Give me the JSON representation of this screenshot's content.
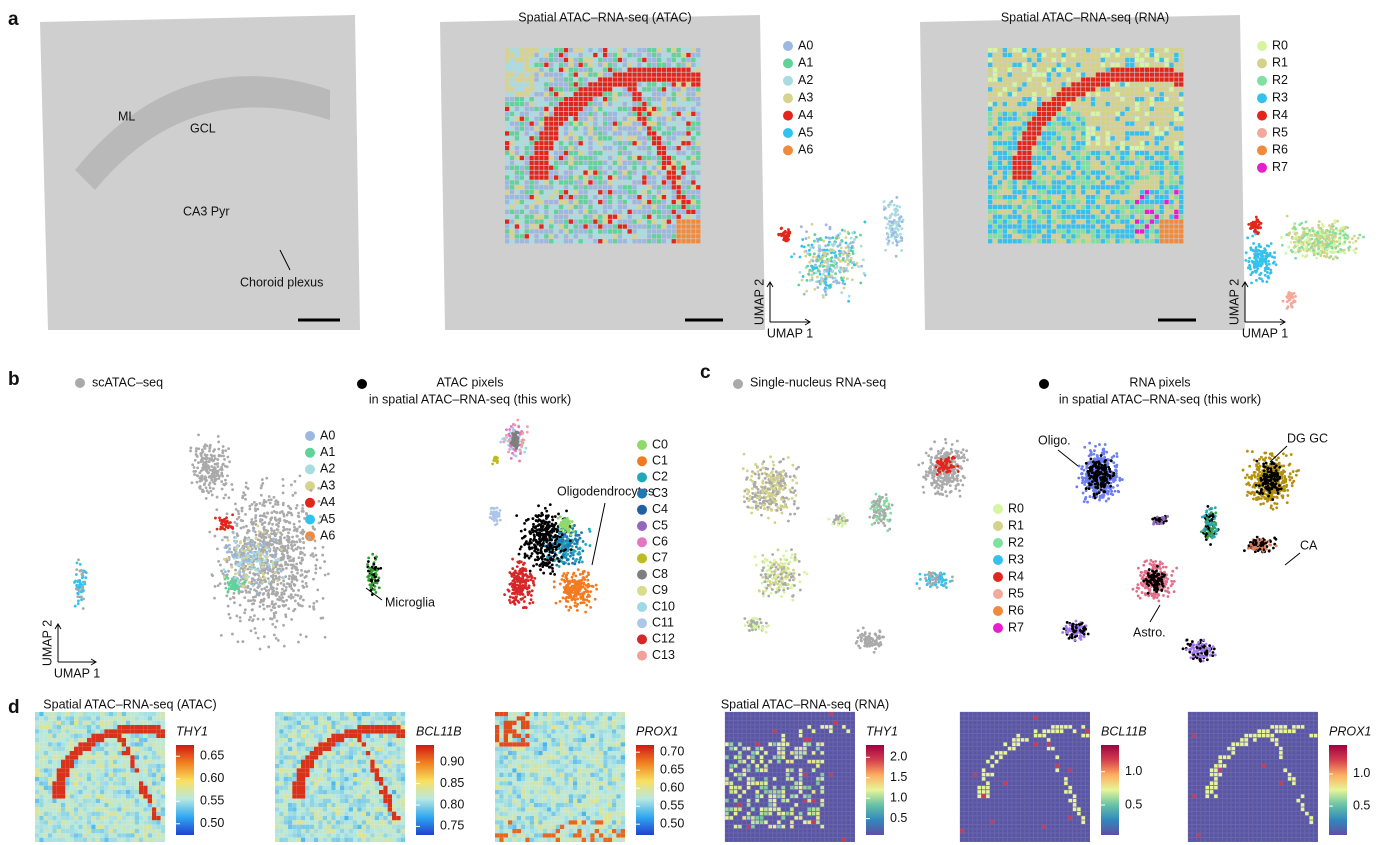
{
  "panel_a": {
    "letter": "a",
    "tissue_labels": [
      "ML",
      "GCL",
      "CA3 Pyr",
      "Choroid plexus"
    ],
    "atac_title": "Spatial ATAC–RNA-seq (ATAC)",
    "rna_title": "Spatial ATAC–RNA-seq (RNA)",
    "atac_clusters": [
      {
        "name": "A0",
        "color": "#9db8e0"
      },
      {
        "name": "A1",
        "color": "#5fd39a"
      },
      {
        "name": "A2",
        "color": "#a8dce0"
      },
      {
        "name": "A3",
        "color": "#d6d38c"
      },
      {
        "name": "A4",
        "color": "#e3261c"
      },
      {
        "name": "A5",
        "color": "#2ec4ef"
      },
      {
        "name": "A6",
        "color": "#f08a3c"
      }
    ],
    "rna_clusters": [
      {
        "name": "R0",
        "color": "#d5f5a0"
      },
      {
        "name": "R1",
        "color": "#d4d18a"
      },
      {
        "name": "R2",
        "color": "#7fe0a0"
      },
      {
        "name": "R3",
        "color": "#35c1ec"
      },
      {
        "name": "R4",
        "color": "#e3261c"
      },
      {
        "name": "R5",
        "color": "#f2a99a"
      },
      {
        "name": "R6",
        "color": "#f08a3c"
      },
      {
        "name": "R7",
        "color": "#e81ecc"
      }
    ],
    "umap_x": "UMAP 1",
    "umap_y": "UMAP 2"
  },
  "panel_b": {
    "letter": "b",
    "reference_label": "scATAC–seq",
    "pixels_label": [
      "ATAC pixels",
      "in spatial ATAC–RNA-seq (this work)"
    ],
    "clusters": [
      {
        "name": "C0",
        "color": "#8fd86c"
      },
      {
        "name": "C1",
        "color": "#f47a20"
      },
      {
        "name": "C2",
        "color": "#21a8b8"
      },
      {
        "name": "C3",
        "color": "#1f77b4"
      },
      {
        "name": "C4",
        "color": "#2060a0"
      },
      {
        "name": "C5",
        "color": "#9467bd"
      },
      {
        "name": "C6",
        "color": "#e377c2"
      },
      {
        "name": "C7",
        "color": "#bcbd22"
      },
      {
        "name": "C8",
        "color": "#7f7f7f"
      },
      {
        "name": "C9",
        "color": "#dbdb8d"
      },
      {
        "name": "C10",
        "color": "#9edae5"
      },
      {
        "name": "C11",
        "color": "#aec7e8"
      },
      {
        "name": "C12",
        "color": "#d62728"
      },
      {
        "name": "C13",
        "color": "#f4a09a"
      }
    ],
    "annotations": [
      "Oligodendrocytes",
      "Microglia"
    ]
  },
  "panel_c": {
    "letter": "c",
    "reference_label": "Single-nucleus RNA-seq",
    "pixels_label": [
      "RNA pixels",
      "in spatial ATAC–RNA-seq (this work)"
    ],
    "annotations": [
      "Oligo.",
      "DG GC",
      "CA",
      "Astro."
    ]
  },
  "panel_d": {
    "letter": "d",
    "atac_title": "Spatial ATAC–RNA-seq (ATAC)",
    "rna_title": "Spatial ATAC–RNA-seq (RNA)",
    "maps": [
      {
        "gene": "THY1",
        "colormap": "jet",
        "lim": [
          0.475,
          0.675
        ],
        "ticks": [
          {
            "value": 0.5,
            "label": "0.50"
          },
          0.55,
          {
            "value": 0.6,
            "label": "0.60"
          },
          0.65
        ]
      },
      {
        "gene": "BCL11B",
        "colormap": "jet",
        "lim": [
          0.73,
          0.94
        ],
        "ticks": [
          0.75,
          {
            "value": 0.8,
            "label": "0.80"
          },
          0.85,
          {
            "value": 0.9,
            "label": "0.90"
          }
        ]
      },
      {
        "gene": "PROX1",
        "colormap": "jet",
        "lim": [
          0.47,
          0.72
        ],
        "ticks": [
          {
            "value": 0.5,
            "label": "0.50"
          },
          0.55,
          {
            "value": 0.6,
            "label": "0.60"
          },
          0.65,
          {
            "value": 0.7,
            "label": "0.70"
          }
        ]
      },
      {
        "gene": "THY1",
        "colormap": "spectral",
        "lim": [
          0.1,
          2.3
        ],
        "ticks": [
          0.5,
          {
            "value": 1,
            "label": "1.0"
          },
          1.5,
          {
            "value": 2,
            "label": "2.0"
          }
        ]
      },
      {
        "gene": "BCL11B",
        "colormap": "spectral",
        "lim": [
          0.05,
          1.4
        ],
        "ticks": [
          0.5,
          {
            "value": 1,
            "label": "1.0"
          }
        ]
      },
      {
        "gene": "PROX1",
        "colormap": "spectral",
        "lim": [
          0.05,
          1.45
        ],
        "ticks": [
          0.5,
          {
            "value": 1,
            "label": "1.0"
          }
        ]
      }
    ]
  }
}
